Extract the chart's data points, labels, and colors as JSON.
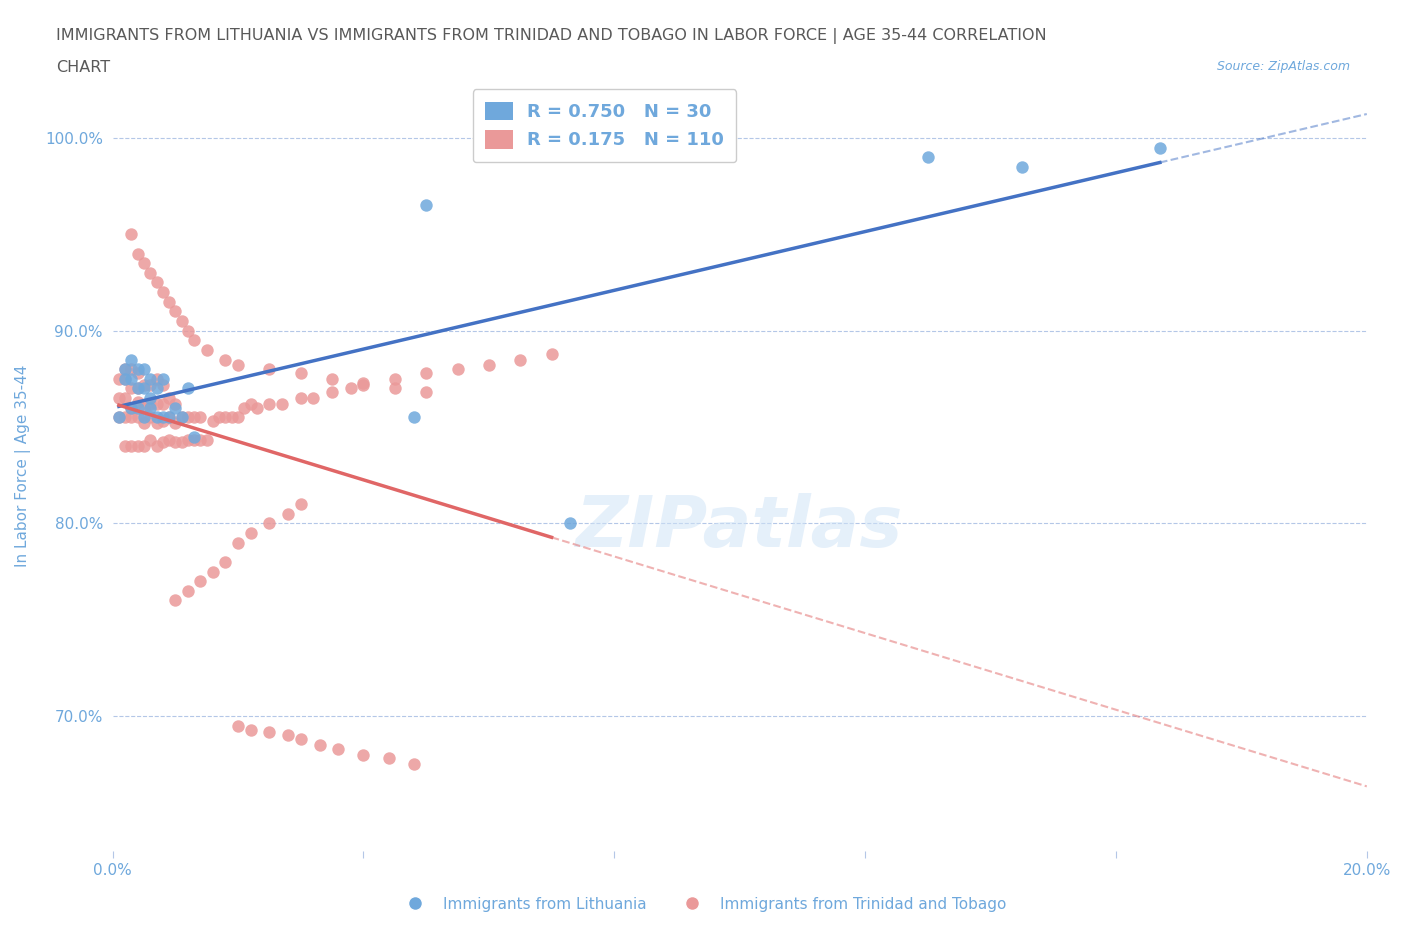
{
  "title_line1": "IMMIGRANTS FROM LITHUANIA VS IMMIGRANTS FROM TRINIDAD AND TOBAGO IN LABOR FORCE | AGE 35-44 CORRELATION",
  "title_line2": "CHART",
  "source_text": "Source: ZipAtlas.com",
  "xlabel": "",
  "ylabel": "In Labor Force | Age 35-44",
  "legend_blue_r": "R = 0.750",
  "legend_blue_n": "N = 30",
  "legend_pink_r": "R = 0.175",
  "legend_pink_n": "N = 110",
  "xlim": [
    0.0,
    0.2
  ],
  "ylim": [
    0.63,
    1.03
  ],
  "xticks": [
    0.0,
    0.04,
    0.08,
    0.12,
    0.16,
    0.2
  ],
  "xtick_labels": [
    "0.0%",
    "",
    "",
    "",
    "",
    "20.0%"
  ],
  "ytick_labels": [
    "70.0%",
    "80.0%",
    "90.0%",
    "100.0%"
  ],
  "yticks": [
    0.7,
    0.8,
    0.9,
    1.0
  ],
  "color_blue": "#6fa8dc",
  "color_pink": "#ea9999",
  "color_blue_line": "#4472c4",
  "color_pink_line": "#e06666",
  "color_axis": "#6fa8dc",
  "color_title": "#595959",
  "color_grid": "#b4c7e7",
  "watermark_text": "ZIPatlas",
  "blue_points_x": [
    0.001,
    0.002,
    0.002,
    0.003,
    0.003,
    0.003,
    0.004,
    0.004,
    0.004,
    0.005,
    0.005,
    0.005,
    0.006,
    0.006,
    0.006,
    0.007,
    0.007,
    0.008,
    0.008,
    0.009,
    0.01,
    0.011,
    0.012,
    0.013,
    0.048,
    0.05,
    0.073,
    0.13,
    0.145,
    0.167
  ],
  "blue_points_y": [
    0.855,
    0.875,
    0.88,
    0.86,
    0.875,
    0.885,
    0.86,
    0.87,
    0.88,
    0.855,
    0.87,
    0.88,
    0.86,
    0.865,
    0.875,
    0.855,
    0.87,
    0.855,
    0.875,
    0.855,
    0.86,
    0.855,
    0.87,
    0.845,
    0.855,
    0.965,
    0.8,
    0.99,
    0.985,
    0.995
  ],
  "pink_points_x": [
    0.001,
    0.001,
    0.001,
    0.002,
    0.002,
    0.002,
    0.002,
    0.002,
    0.003,
    0.003,
    0.003,
    0.003,
    0.003,
    0.004,
    0.004,
    0.004,
    0.004,
    0.004,
    0.005,
    0.005,
    0.005,
    0.005,
    0.006,
    0.006,
    0.006,
    0.006,
    0.007,
    0.007,
    0.007,
    0.007,
    0.008,
    0.008,
    0.008,
    0.008,
    0.009,
    0.009,
    0.009,
    0.01,
    0.01,
    0.01,
    0.011,
    0.011,
    0.012,
    0.012,
    0.013,
    0.013,
    0.014,
    0.014,
    0.015,
    0.016,
    0.017,
    0.018,
    0.019,
    0.02,
    0.021,
    0.022,
    0.023,
    0.025,
    0.027,
    0.03,
    0.032,
    0.035,
    0.038,
    0.04,
    0.045,
    0.05,
    0.055,
    0.06,
    0.065,
    0.07,
    0.01,
    0.012,
    0.014,
    0.016,
    0.018,
    0.02,
    0.022,
    0.025,
    0.028,
    0.03,
    0.003,
    0.004,
    0.005,
    0.006,
    0.007,
    0.008,
    0.009,
    0.01,
    0.011,
    0.012,
    0.013,
    0.015,
    0.018,
    0.02,
    0.025,
    0.03,
    0.035,
    0.04,
    0.045,
    0.05,
    0.02,
    0.022,
    0.025,
    0.028,
    0.03,
    0.033,
    0.036,
    0.04,
    0.044,
    0.048
  ],
  "pink_points_y": [
    0.855,
    0.865,
    0.875,
    0.84,
    0.855,
    0.865,
    0.875,
    0.88,
    0.84,
    0.855,
    0.86,
    0.87,
    0.88,
    0.84,
    0.855,
    0.863,
    0.87,
    0.878,
    0.84,
    0.852,
    0.86,
    0.872,
    0.843,
    0.855,
    0.862,
    0.872,
    0.84,
    0.852,
    0.862,
    0.875,
    0.842,
    0.853,
    0.862,
    0.872,
    0.843,
    0.855,
    0.865,
    0.842,
    0.852,
    0.862,
    0.842,
    0.855,
    0.843,
    0.855,
    0.843,
    0.855,
    0.843,
    0.855,
    0.843,
    0.853,
    0.855,
    0.855,
    0.855,
    0.855,
    0.86,
    0.862,
    0.86,
    0.862,
    0.862,
    0.865,
    0.865,
    0.868,
    0.87,
    0.872,
    0.875,
    0.878,
    0.88,
    0.882,
    0.885,
    0.888,
    0.76,
    0.765,
    0.77,
    0.775,
    0.78,
    0.79,
    0.795,
    0.8,
    0.805,
    0.81,
    0.95,
    0.94,
    0.935,
    0.93,
    0.925,
    0.92,
    0.915,
    0.91,
    0.905,
    0.9,
    0.895,
    0.89,
    0.885,
    0.882,
    0.88,
    0.878,
    0.875,
    0.873,
    0.87,
    0.868,
    0.695,
    0.693,
    0.692,
    0.69,
    0.688,
    0.685,
    0.683,
    0.68,
    0.678,
    0.675
  ]
}
